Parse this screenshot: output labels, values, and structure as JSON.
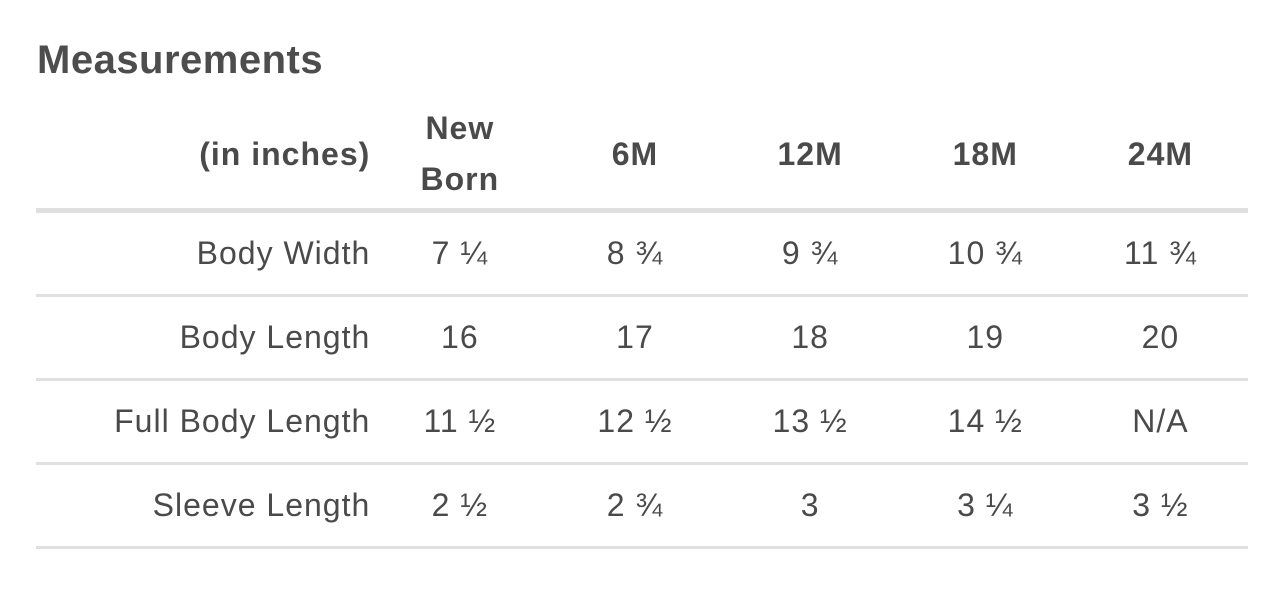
{
  "title": "Measurements",
  "table": {
    "unit_header": "(in inches)",
    "columns": [
      "New Born",
      "6M",
      "12M",
      "18M",
      "24M"
    ],
    "rows": [
      {
        "label": "Body Width",
        "values": [
          "7 ¼",
          "8 ¾",
          "9 ¾",
          "10 ¾",
          "11 ¾"
        ]
      },
      {
        "label": "Body Length",
        "values": [
          "16",
          "17",
          "18",
          "19",
          "20"
        ]
      },
      {
        "label": "Full Body Length",
        "values": [
          "11 ½",
          "12 ½",
          "13 ½",
          "14 ½",
          "N/A"
        ]
      },
      {
        "label": "Sleeve Length",
        "values": [
          "2 ½",
          "2 ¾",
          "3",
          "3 ¼",
          "3 ½"
        ]
      }
    ]
  }
}
